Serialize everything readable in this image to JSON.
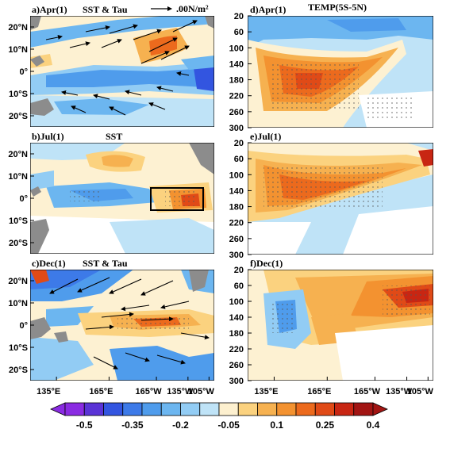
{
  "panels": [
    {
      "id": "a",
      "title": "a)Apr(1)",
      "subtitle": "SST & Tau",
      "kind": "map",
      "vectors": true
    },
    {
      "id": "b",
      "title": "b)Jul(1)",
      "subtitle": "SST",
      "kind": "map",
      "vectors": false,
      "box": {
        "lon": [
          -180,
          -150
        ],
        "lat": [
          -5,
          5
        ]
      }
    },
    {
      "id": "c",
      "title": "c)Dec(1)",
      "subtitle": "SST & Tau",
      "kind": "map",
      "vectors": true
    },
    {
      "id": "d",
      "title": "d)Apr(1)",
      "subtitle": "TEMP(5S-5N)",
      "kind": "section"
    },
    {
      "id": "e",
      "title": "e)Jul(1)",
      "subtitle": "",
      "kind": "section"
    },
    {
      "id": "f",
      "title": "f)Dec(1)",
      "subtitle": "",
      "kind": "section"
    }
  ],
  "reference_vector": {
    "label": ".00N/m²"
  },
  "map_lat_ticks": [
    "20°N",
    "10°N",
    "0°",
    "10°S",
    "20°S"
  ],
  "section_depth_ticks": [
    "20",
    "60",
    "100",
    "140",
    "180",
    "220",
    "260",
    "300"
  ],
  "lon_ticks": [
    "135°E",
    "165°E",
    "165°W",
    "135°W",
    "105°W"
  ],
  "colorbar": {
    "labels": [
      "-0.5",
      "-0.35",
      "-0.2",
      "-0.05",
      "0.1",
      "0.25",
      "0.4"
    ],
    "colors": [
      "#8a2be2",
      "#5a33d6",
      "#3355e0",
      "#3d7ae8",
      "#4f9cec",
      "#6cb6f0",
      "#92ccf4",
      "#bfe3f7",
      "#fdf0cf",
      "#fbd27f",
      "#f6b150",
      "#f39230",
      "#ec6a1d",
      "#e04a17",
      "#c82613",
      "#a21513"
    ]
  },
  "chart_data": {
    "type": "heatmap",
    "variable": "SST & Tau / TEMP(5S-5N)",
    "colorbar_range": [
      -0.5,
      0.5
    ],
    "colorbar_levels": [
      -0.5,
      -0.45,
      -0.4,
      -0.35,
      -0.3,
      -0.25,
      -0.2,
      -0.15,
      -0.1,
      -0.05,
      0,
      0.05,
      0.1,
      0.15,
      0.2,
      0.25,
      0.3,
      0.35,
      0.4,
      0.45,
      0.5
    ],
    "map_lon_range": [
      "120°E",
      "90°W"
    ],
    "map_lat_range": [
      "25°S",
      "25°N"
    ],
    "section_depth_range_m": [
      20,
      300
    ]
  },
  "colors": {
    "land": "#8c8c8c",
    "stipple": "#6b6b6b",
    "frame": "#000000"
  }
}
